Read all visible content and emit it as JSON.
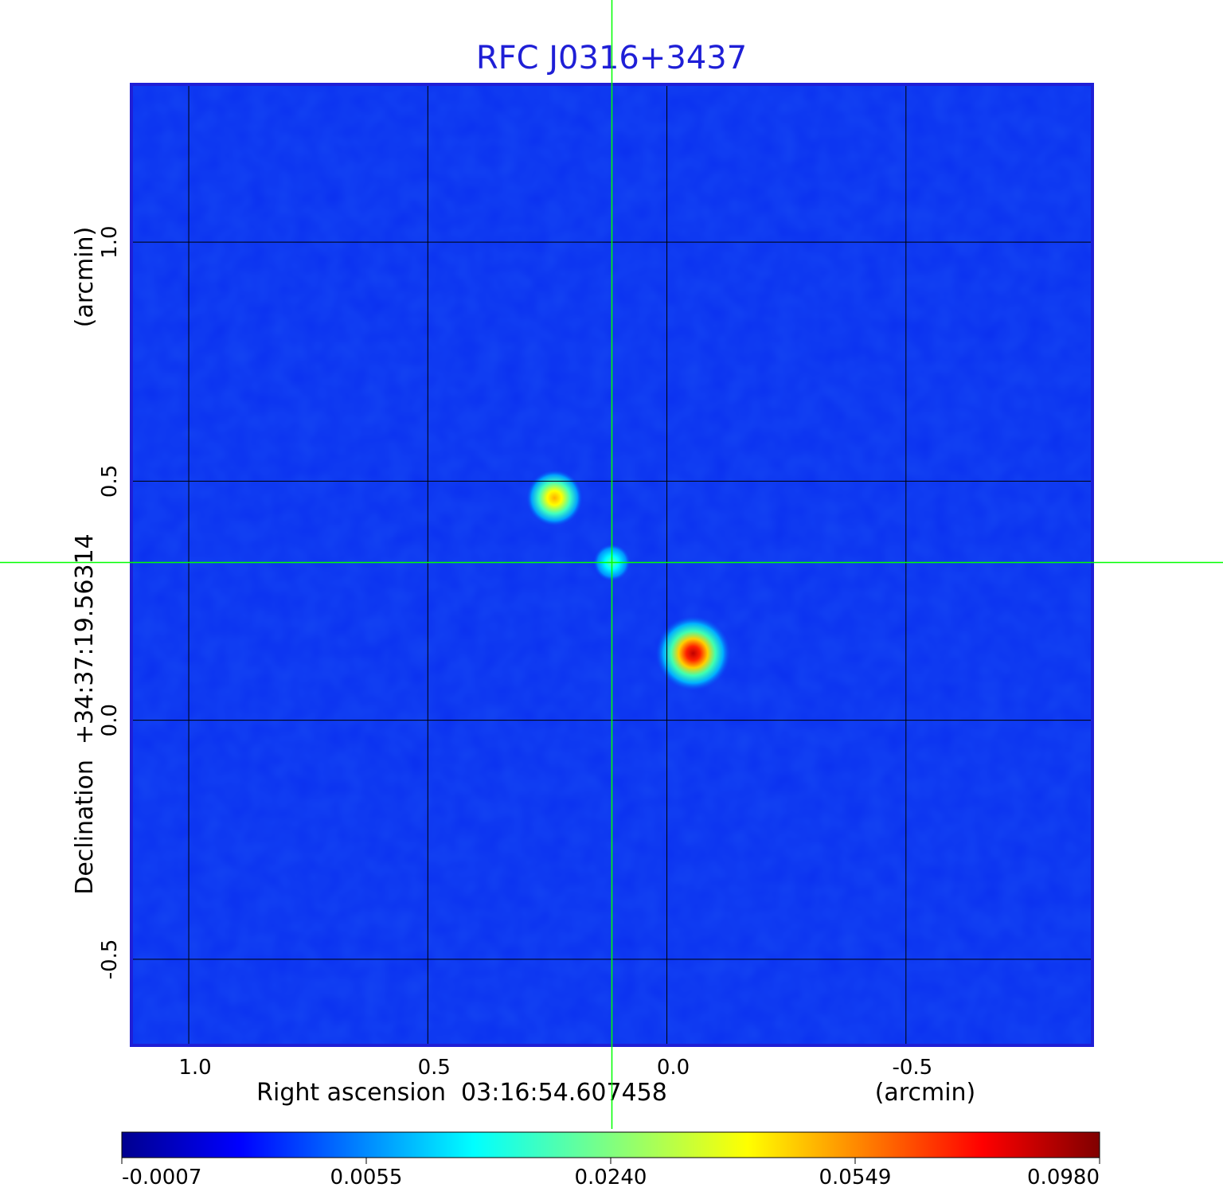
{
  "chart_data": {
    "type": "heatmap",
    "title": "RFC J0316+3437",
    "xlabel": "Right ascension  03:16:54.607458",
    "xunit": "(arcmin)",
    "ylabel": "Declination  +34:37:19.56314",
    "yunit": "(arcmin)",
    "x_ticks": [
      "1.0",
      "0.5",
      "0.0",
      "-0.5"
    ],
    "x_tick_values": [
      1.0,
      0.5,
      0.0,
      -0.5
    ],
    "y_ticks": [
      "1.0",
      "0.5",
      "0.0",
      "-0.5"
    ],
    "y_tick_values": [
      1.0,
      0.5,
      0.0,
      -0.5
    ],
    "xlim": [
      1.12,
      -0.89
    ],
    "ylim": [
      -0.68,
      1.33
    ],
    "grid": true,
    "crosshair": {
      "x": 0.115,
      "y": 0.33,
      "color": "#00ff00"
    },
    "colorbar": {
      "ticks": [
        "-0.0007",
        "0.0055",
        "0.0240",
        "0.0549",
        "0.0980"
      ],
      "colormap": "jet"
    },
    "background_color": "#0a30f0",
    "sources": [
      {
        "x": 0.235,
        "y": 0.465,
        "peak": 0.058
      },
      {
        "x": 0.115,
        "y": 0.33,
        "peak": 0.021
      },
      {
        "x": -0.055,
        "y": 0.14,
        "peak": 0.098
      }
    ]
  }
}
